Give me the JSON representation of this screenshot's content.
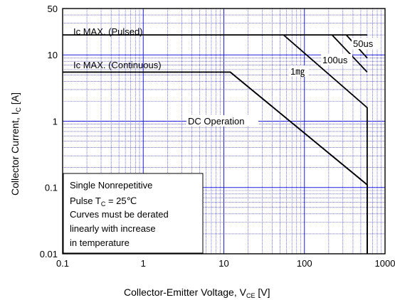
{
  "chart_data": {
    "type": "line",
    "x_scale": "log",
    "y_scale": "log",
    "xlim": [
      0.1,
      1000
    ],
    "ylim": [
      0.01,
      50
    ],
    "grid": true,
    "x_ticks": [
      "0.1",
      "1",
      "10",
      "100",
      "1000"
    ],
    "y_ticks": [
      "0.01",
      "0.1",
      "1",
      "10",
      "50"
    ],
    "xlabel": {
      "main": "Collector-Emitter  Voltage, V",
      "sub": "CE",
      "unit": " [V]"
    },
    "ylabel": {
      "main": "Collector Current, I",
      "sub": "C",
      "unit": " [A]"
    },
    "series": [
      {
        "name": "Ic MAX. (Pulsed)",
        "points": [
          [
            0.1,
            20
          ],
          [
            600,
            20
          ]
        ]
      },
      {
        "name": "Ic MAX. (Continuous)",
        "points": [
          [
            0.1,
            5.5
          ],
          [
            12,
            5.5
          ],
          [
            600,
            0.11
          ],
          [
            600,
            0.01
          ]
        ]
      },
      {
        "name": "DC Operation",
        "points": [
          [
            0.1,
            5.5
          ],
          [
            12,
            5.5
          ],
          [
            600,
            0.11
          ],
          [
            600,
            0.01
          ]
        ]
      },
      {
        "name": "1ms",
        "points": [
          [
            55,
            20
          ],
          [
            600,
            1.6
          ],
          [
            600,
            0.01
          ]
        ]
      },
      {
        "name": "100us",
        "points": [
          [
            220,
            20
          ],
          [
            600,
            5.5
          ]
        ]
      },
      {
        "name": "50us",
        "points": [
          [
            330,
            20
          ],
          [
            600,
            9
          ]
        ]
      }
    ],
    "annotations": {
      "pulsed": "Ic MAX. (Pulsed)",
      "continuous": "Ic MAX. (Continuous)",
      "dc": "DC Operation",
      "one_ms": "1㎎",
      "hundred_us": "100us",
      "fifty_us": "50us"
    },
    "note_lines": [
      "Single Nonrepetitive",
      {
        "pre": "Pulse T",
        "sub": "C",
        "post": " = 25℃"
      },
      "Curves must be derated",
      "linearly with increase",
      "in temperature"
    ],
    "colors": {
      "grid": "#1f1fe0",
      "line": "#000000",
      "background": "#ffffff"
    }
  }
}
